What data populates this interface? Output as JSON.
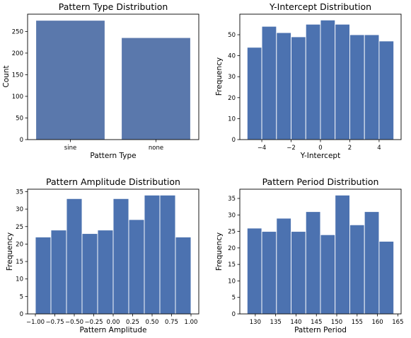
{
  "colors": {
    "bar": "#4c72b0",
    "bar_cat": "#5a78ac",
    "edge": "#ffffff",
    "axis": "#000000"
  },
  "chart_data": [
    {
      "type": "bar",
      "title": "Pattern Type Distribution",
      "xlabel": "Pattern Type",
      "ylabel": "Count",
      "categories": [
        "sine",
        "none"
      ],
      "values": [
        275,
        235
      ],
      "ylim": [
        0,
        290
      ],
      "yticks": [
        0,
        50,
        100,
        150,
        200,
        250
      ],
      "grid": false
    },
    {
      "type": "bar",
      "title": "Y-Intercept Distribution",
      "xlabel": "Y-Intercept",
      "ylabel": "Frequency",
      "bin_edges": [
        -5,
        -4,
        -3,
        -2,
        -1,
        0,
        1,
        2,
        3,
        4,
        5
      ],
      "values": [
        44,
        54,
        51,
        49,
        55,
        57,
        55,
        50,
        50,
        47
      ],
      "xlim": [
        -5.5,
        5.5
      ],
      "ylim": [
        0,
        59.8
      ],
      "xticks": [
        -4,
        -2,
        0,
        2,
        4
      ],
      "xtick_labels": [
        "−4",
        "−2",
        "0",
        "2",
        "4"
      ],
      "yticks": [
        0,
        10,
        20,
        30,
        40,
        50
      ],
      "grid": false
    },
    {
      "type": "bar",
      "title": "Pattern Amplitude Distribution",
      "xlabel": "Pattern Amplitude",
      "ylabel": "Frequency",
      "bin_edges": [
        -1.0,
        -0.8,
        -0.6,
        -0.4,
        -0.2,
        0.0,
        0.2,
        0.4,
        0.6,
        0.8,
        1.0
      ],
      "values": [
        22,
        24,
        33,
        23,
        24,
        33,
        27,
        34,
        34,
        22
      ],
      "xlim": [
        -1.1,
        1.1
      ],
      "ylim": [
        0,
        35.7
      ],
      "xticks": [
        -1.0,
        -0.75,
        -0.5,
        -0.25,
        0.0,
        0.25,
        0.5,
        0.75,
        1.0
      ],
      "xtick_labels": [
        "−1.00",
        "−0.75",
        "−0.50",
        "−0.25",
        "0.00",
        "0.25",
        "0.50",
        "0.75",
        "1.00"
      ],
      "yticks": [
        0,
        5,
        10,
        15,
        20,
        25,
        30,
        35
      ],
      "grid": false
    },
    {
      "type": "bar",
      "title": "Pattern Period Distribution",
      "xlabel": "Pattern Period",
      "ylabel": "Frequency",
      "bin_edges": [
        128,
        131.6,
        135.2,
        138.8,
        142.4,
        146,
        149.6,
        153.2,
        156.8,
        160.4,
        164
      ],
      "values": [
        26,
        25,
        29,
        25,
        31,
        24,
        36,
        27,
        31,
        22
      ],
      "xlim": [
        126.2,
        165.8
      ],
      "ylim": [
        0,
        37.8
      ],
      "xticks": [
        130,
        135,
        140,
        145,
        150,
        155,
        160,
        165
      ],
      "xtick_labels": [
        "130",
        "135",
        "140",
        "145",
        "150",
        "155",
        "160",
        "165"
      ],
      "yticks": [
        0,
        5,
        10,
        15,
        20,
        25,
        30,
        35
      ],
      "grid": false
    }
  ]
}
